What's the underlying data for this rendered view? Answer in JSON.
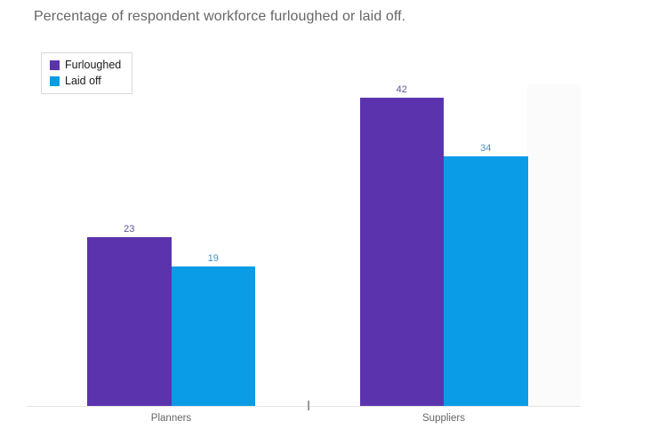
{
  "chart_data": {
    "type": "bar",
    "title": "Percentage of respondent workforce furloughed or laid off.",
    "categories": [
      "Planners",
      "Suppliers"
    ],
    "series": [
      {
        "name": "Furloughed",
        "color": "#5b34ad",
        "label_color": "#5c5695",
        "values": [
          23,
          42
        ]
      },
      {
        "name": "Laid off",
        "color": "#0b9ce8",
        "label_color": "#4493c6",
        "values": [
          19,
          34
        ]
      }
    ],
    "data_labels": true,
    "xlabel": "",
    "ylabel": "",
    "ylim": [
      0,
      48
    ],
    "grid": false,
    "legend_position": "top-left"
  }
}
